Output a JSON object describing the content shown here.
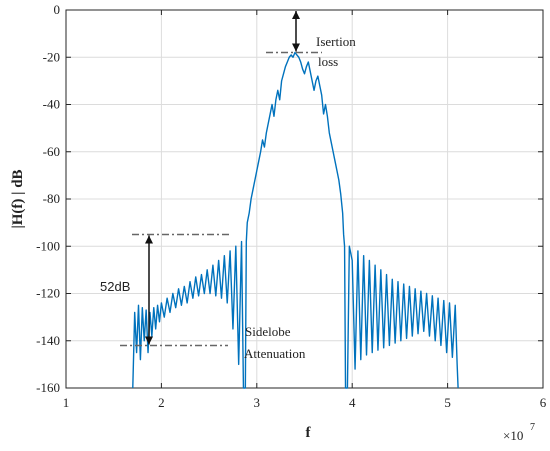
{
  "chart_data": {
    "type": "line",
    "title": "",
    "xlabel": "f",
    "ylabel": "|H(f) | dB",
    "x_exponent_label": "×10",
    "x_exponent_power": "7",
    "xlim": [
      1,
      6
    ],
    "ylim": [
      -160,
      0
    ],
    "xticks": [
      1,
      2,
      3,
      4,
      5,
      6
    ],
    "yticks": [
      0,
      -20,
      -40,
      -60,
      -80,
      -100,
      -120,
      -140,
      -160
    ],
    "xtick_labels": [
      "1",
      "2",
      "3",
      "4",
      "5",
      "6"
    ],
    "ytick_labels": [
      "0",
      "-20",
      "-40",
      "-60",
      "-80",
      "-100",
      "-120",
      "-140",
      "-160"
    ],
    "grid": true,
    "line_color": "#0072BD",
    "series": [
      {
        "x": [
          1.7,
          1.72,
          1.74,
          1.76,
          1.78,
          1.8,
          1.82,
          1.84,
          1.86,
          1.88,
          1.9,
          1.92,
          1.94,
          1.96,
          1.98,
          2.0,
          2.03,
          2.06,
          2.09,
          2.12,
          2.15,
          2.18,
          2.21,
          2.24,
          2.27,
          2.3,
          2.33,
          2.36,
          2.39,
          2.42,
          2.45,
          2.48,
          2.51,
          2.54,
          2.57,
          2.6,
          2.63,
          2.66,
          2.69,
          2.72,
          2.75,
          2.78,
          2.81,
          2.84,
          2.86,
          2.87,
          2.88,
          2.89,
          2.9,
          2.92,
          2.94,
          2.96,
          2.98,
          3.0,
          3.02,
          3.04,
          3.06,
          3.08,
          3.1,
          3.12,
          3.14,
          3.16,
          3.18,
          3.2,
          3.22,
          3.24,
          3.26,
          3.28,
          3.3,
          3.32,
          3.34,
          3.36,
          3.38,
          3.4,
          3.42,
          3.44,
          3.46,
          3.48,
          3.5,
          3.52,
          3.54,
          3.56,
          3.58,
          3.6,
          3.62,
          3.64,
          3.66,
          3.68,
          3.7,
          3.72,
          3.74,
          3.76,
          3.78,
          3.8,
          3.82,
          3.84,
          3.86,
          3.88,
          3.9,
          3.91,
          3.92,
          3.93,
          3.94,
          3.95,
          3.97,
          4.0,
          4.03,
          4.06,
          4.09,
          4.12,
          4.15,
          4.18,
          4.21,
          4.24,
          4.27,
          4.3,
          4.33,
          4.36,
          4.39,
          4.42,
          4.45,
          4.48,
          4.51,
          4.54,
          4.57,
          4.6,
          4.63,
          4.66,
          4.69,
          4.72,
          4.75,
          4.78,
          4.81,
          4.84,
          4.87,
          4.9,
          4.93,
          4.96,
          4.99,
          5.02,
          5.05,
          5.08,
          5.1,
          5.11
        ],
        "y": [
          -160,
          -128,
          -145,
          -125,
          -148,
          -126,
          -140,
          -127,
          -145,
          -128,
          -138,
          -126,
          -135,
          -125,
          -132,
          -124,
          -130,
          -122,
          -128,
          -120,
          -126,
          -118,
          -125,
          -117,
          -124,
          -115,
          -122,
          -113,
          -121,
          -112,
          -120,
          -110,
          -120,
          -108,
          -121,
          -106,
          -122,
          -104,
          -124,
          -102,
          -135,
          -100,
          -150,
          -98,
          -160,
          -160,
          -160,
          -98,
          -90,
          -86,
          -80,
          -76,
          -72,
          -68,
          -64,
          -60,
          -55,
          -58,
          -52,
          -48,
          -44,
          -40,
          -45,
          -38,
          -34,
          -38,
          -30,
          -27,
          -24,
          -22,
          -20,
          -19,
          -20,
          -18,
          -19,
          -20,
          -22,
          -25,
          -27,
          -24,
          -22,
          -26,
          -30,
          -34,
          -30,
          -28,
          -32,
          -36,
          -44,
          -40,
          -45,
          -52,
          -56,
          -60,
          -64,
          -68,
          -72,
          -78,
          -86,
          -95,
          -100,
          -160,
          -160,
          -160,
          -100,
          -106,
          -152,
          -102,
          -148,
          -104,
          -146,
          -106,
          -145,
          -108,
          -144,
          -110,
          -143,
          -112,
          -142,
          -114,
          -141,
          -115,
          -140,
          -116,
          -139,
          -117,
          -138,
          -118,
          -137,
          -119,
          -136,
          -120,
          -138,
          -121,
          -140,
          -122,
          -142,
          -123,
          -145,
          -124,
          -147,
          -125,
          -150,
          -160
        ]
      }
    ],
    "annotations": {
      "insertion_loss_line1": "Isertion",
      "insertion_loss_line2": "loss",
      "sidelobe_line1": "Sidelobe",
      "sidelobe_line2": "Attenuation",
      "attenuation_value": "52dB",
      "upper_ref_level": -95,
      "lower_ref_level": -142,
      "peak_level": -18
    }
  }
}
